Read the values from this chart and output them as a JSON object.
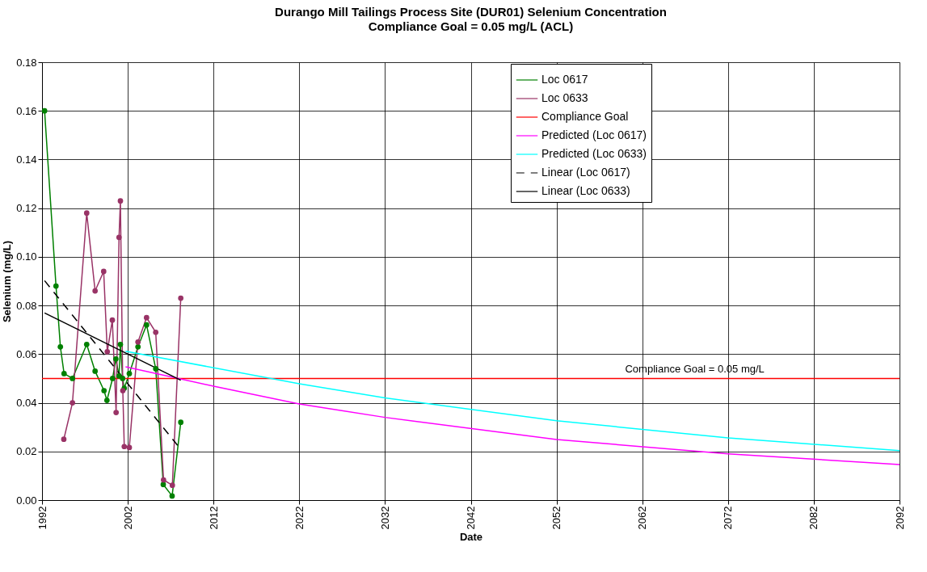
{
  "chart_data": {
    "type": "line",
    "title": "Durango Mill Tailings Process Site (DUR01) Selenium Concentration",
    "subtitle": "Compliance Goal = 0.05 mg/L (ACL)",
    "xlabel": "Date",
    "ylabel": "Selenium (mg/L)",
    "xlim": [
      1992,
      2092
    ],
    "xticks": [
      1992,
      2002,
      2012,
      2022,
      2032,
      2042,
      2052,
      2062,
      2072,
      2082,
      2092
    ],
    "ylim": [
      0,
      0.18
    ],
    "yticks": [
      {
        "value": 0,
        "label": "0.00"
      },
      {
        "value": 0.02,
        "label": "0.02"
      },
      {
        "value": 0.04,
        "label": "0.04"
      },
      {
        "value": 0.06,
        "label": "0.06"
      },
      {
        "value": 0.08,
        "label": "0.08"
      },
      {
        "value": 0.1,
        "label": "0.10"
      },
      {
        "value": 0.12,
        "label": "0.12"
      },
      {
        "value": 0.14,
        "label": "0.14"
      },
      {
        "value": 0.16,
        "label": "0.16"
      },
      {
        "value": 0.18,
        "label": "0.18"
      }
    ],
    "grid": true,
    "legend": "top right",
    "series": [
      {
        "name": "Loc 0617",
        "color": "#008000",
        "marker": "circle",
        "line_style": "solid",
        "x": [
          1992.3,
          1993.63,
          1994.14,
          1994.57,
          1995.55,
          1997.21,
          1998.19,
          1999.23,
          1999.57,
          2000.23,
          2000.61,
          2000.98,
          2001.14,
          2001.4,
          2001.59,
          2002.18,
          2003.19,
          2004.19,
          2005.26,
          2006.14,
          2007.17,
          2008.18
        ],
        "values": [
          0.16,
          0.088,
          0.063,
          0.052,
          0.05,
          0.064,
          0.053,
          0.045,
          0.041,
          0.05,
          0.058,
          0.051,
          0.064,
          0.05,
          0.046,
          0.052,
          0.063,
          0.072,
          0.054,
          0.0064,
          0.0017,
          0.032
        ]
      },
      {
        "name": "Loc 0633",
        "color": "#993366",
        "marker": "circle",
        "line_style": "solid",
        "x": [
          1994.54,
          1995.55,
          1997.21,
          1998.19,
          1999.19,
          1999.61,
          2000.2,
          2000.64,
          2000.98,
          2001.14,
          2001.42,
          2001.59,
          2002.18,
          2003.19,
          2004.19,
          2005.26,
          2006.17,
          2007.2,
          2008.18
        ],
        "values": [
          0.025,
          0.04,
          0.118,
          0.086,
          0.094,
          0.061,
          0.074,
          0.036,
          0.108,
          0.123,
          0.045,
          0.022,
          0.0216,
          0.065,
          0.075,
          0.069,
          0.0083,
          0.0061,
          0.083
        ]
      },
      {
        "name": "Compliance Goal",
        "color": "#ff0000",
        "marker": "none",
        "line_style": "solid",
        "x": [
          1992,
          2092
        ],
        "values": [
          0.05,
          0.05
        ]
      },
      {
        "name": "Predicted (Loc 0617)",
        "color": "#ff00ff",
        "marker": "none",
        "line_style": "solid",
        "x": [
          2001.74,
          2012,
          2022,
          2032,
          2052,
          2072,
          2092
        ],
        "values": [
          0.0548,
          0.0468,
          0.0395,
          0.034,
          0.0249,
          0.019,
          0.0146
        ]
      },
      {
        "name": "Predicted (Loc 0633)",
        "color": "#00ffff",
        "marker": "none",
        "line_style": "solid",
        "x": [
          2001.74,
          2022,
          2032,
          2052,
          2072,
          2092
        ],
        "values": [
          0.0612,
          0.0478,
          0.042,
          0.0326,
          0.0256,
          0.0203
        ]
      },
      {
        "name": "Linear (Loc 0617)",
        "color": "#000000",
        "marker": "none",
        "line_style": "dashed",
        "x": [
          1992.3,
          2007.9
        ],
        "values": [
          0.0902,
          0.0221
        ]
      },
      {
        "name": "Linear (Loc 0633)",
        "color": "#000000",
        "marker": "none",
        "line_style": "solid",
        "x": [
          1992.3,
          2008.18
        ],
        "values": [
          0.0769,
          0.0493
        ]
      }
    ],
    "annotations": [
      {
        "text": "Compliance Goal = 0.05 mg/L",
        "x": 2060,
        "y": 0.05
      }
    ]
  }
}
